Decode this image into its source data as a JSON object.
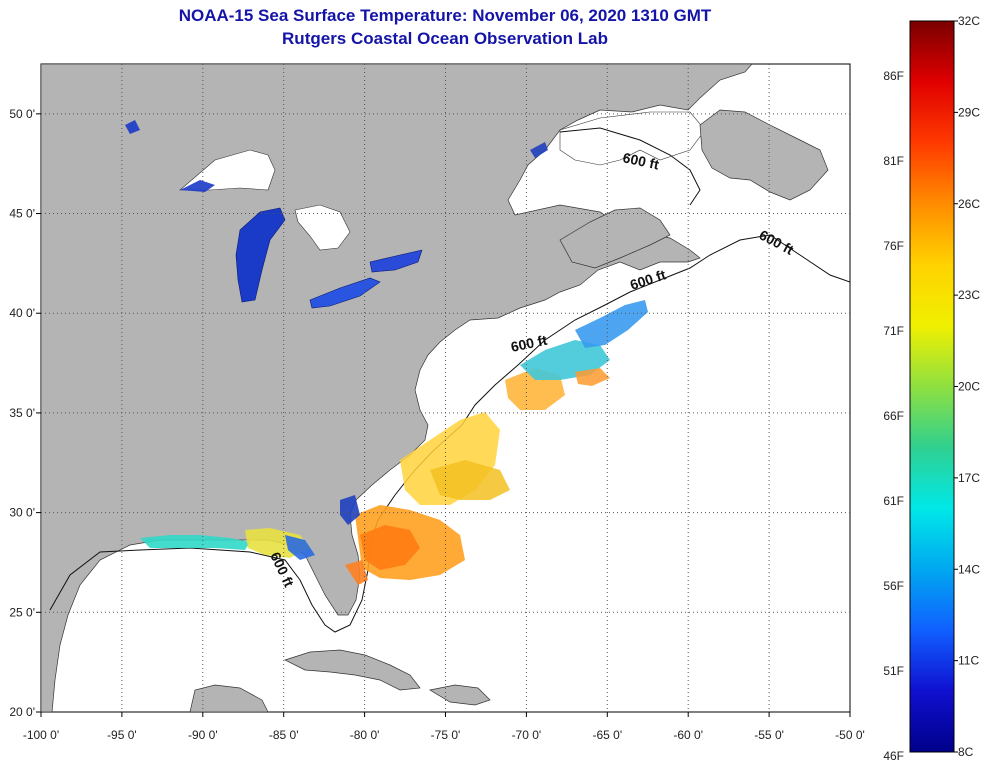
{
  "title": "NOAA-15 Sea Surface Temperature:  November 06, 2020 1310 GMT",
  "subtitle": "Rutgers Coastal Ocean Observation Lab",
  "colors": {
    "title": "#1414a8",
    "land": "#b4b4b4",
    "ocean": "#ffffff",
    "grid": "#555555"
  },
  "map": {
    "lon_range": [
      -100,
      -50
    ],
    "lat_range": [
      20,
      52.5
    ],
    "lon_ticks": [
      "-100 0'",
      "-95 0'",
      "-90 0'",
      "-85 0'",
      "-80 0'",
      "-75 0'",
      "-70 0'",
      "-65 0'",
      "-60 0'",
      "-55 0'",
      "-50 0'"
    ],
    "lat_ticks": [
      "50 0'",
      "45 0'",
      "40 0'",
      "35 0'",
      "30 0'",
      "25 0'",
      "20 0'"
    ],
    "depth_labels": [
      "600 ft",
      "600 ft",
      "600 ft",
      "600 ft",
      "600 ft"
    ]
  },
  "colorbar": {
    "celsius": [
      "32C",
      "29C",
      "26C",
      "23C",
      "20C",
      "17C",
      "14C",
      "11C",
      "8C"
    ],
    "fahrenheit": [
      "86F",
      "81F",
      "76F",
      "71F",
      "66F",
      "61F",
      "56F",
      "51F",
      "46F"
    ],
    "stops": [
      "#7a0000",
      "#e00000",
      "#ff3a00",
      "#ff8c00",
      "#ffd200",
      "#f0f000",
      "#8fe040",
      "#30d090",
      "#00e8e8",
      "#00a8f0",
      "#1060ff",
      "#1010d0",
      "#00008a"
    ]
  }
}
